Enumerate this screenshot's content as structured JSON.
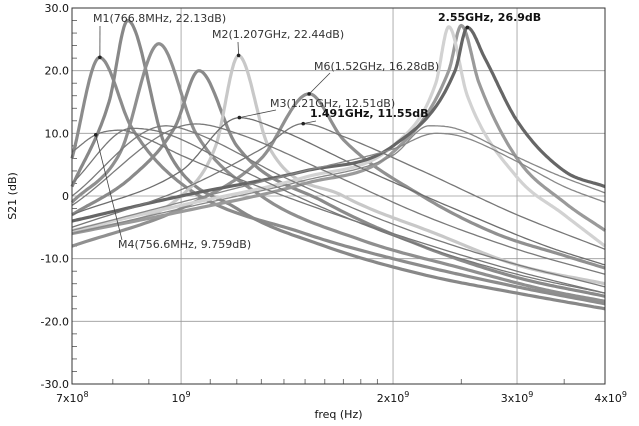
{
  "chart_data": {
    "type": "line",
    "xlabel": "freq (Hz)",
    "ylabel": "S21 (dB)",
    "x_scale": "log",
    "xlim": [
      700000000,
      4000000000
    ],
    "ylim": [
      -30,
      30
    ],
    "grid": true,
    "y_ticks": [
      "-30.0",
      "-20.0",
      "-10.0",
      "0",
      "10.0",
      "20.0",
      "30.0"
    ],
    "x_tick_labels": [
      {
        "base": "7x10",
        "exp": "8"
      },
      {
        "base": "10",
        "exp": "9"
      },
      {
        "base": "2x10",
        "exp": "9"
      },
      {
        "base": "3x10",
        "exp": "9"
      },
      {
        "base": "4x10",
        "exp": "9"
      }
    ],
    "series": [
      {
        "color": "#8c8c8c",
        "width": 3.2,
        "points": [
          [
            0.7,
            6
          ],
          [
            0.766,
            22.1
          ],
          [
            0.85,
            11
          ],
          [
            1.0,
            2
          ],
          [
            1.5,
            -6
          ],
          [
            2.0,
            -10
          ],
          [
            3.0,
            -14.5
          ],
          [
            4.0,
            -17.2
          ]
        ]
      },
      {
        "color": "#888888",
        "width": 3.2,
        "points": [
          [
            0.7,
            1.5
          ],
          [
            0.79,
            15
          ],
          [
            0.84,
            28
          ],
          [
            0.95,
            8
          ],
          [
            1.2,
            -2
          ],
          [
            1.6,
            -8
          ],
          [
            2.2,
            -12.5
          ],
          [
            3.0,
            -15.5
          ],
          [
            4.0,
            -18
          ]
        ]
      },
      {
        "color": "#8f8f8f",
        "width": 3.2,
        "points": [
          [
            0.7,
            -1
          ],
          [
            0.82,
            7
          ],
          [
            0.93,
            24.3
          ],
          [
            1.05,
            10
          ],
          [
            1.3,
            0
          ],
          [
            1.8,
            -7
          ],
          [
            2.5,
            -11.5
          ],
          [
            3.3,
            -15
          ],
          [
            4.0,
            -16.8
          ]
        ]
      },
      {
        "color": "#8a8a8a",
        "width": 3.2,
        "points": [
          [
            0.7,
            -3
          ],
          [
            0.85,
            3
          ],
          [
            0.98,
            11
          ],
          [
            1.06,
            20
          ],
          [
            1.2,
            8
          ],
          [
            1.6,
            -1
          ],
          [
            2.2,
            -8
          ],
          [
            3.0,
            -13
          ],
          [
            4.0,
            -16
          ]
        ]
      },
      {
        "color": "#c8c8c8",
        "width": 3.2,
        "points": [
          [
            0.7,
            -6
          ],
          [
            1.0,
            0
          ],
          [
            1.12,
            8
          ],
          [
            1.207,
            22.4
          ],
          [
            1.33,
            8
          ],
          [
            1.7,
            0
          ],
          [
            2.3,
            -6
          ],
          [
            3.0,
            -11
          ],
          [
            4.0,
            -14
          ]
        ]
      },
      {
        "color": "#909090",
        "width": 3.2,
        "points": [
          [
            0.7,
            -8
          ],
          [
            1.0,
            -2
          ],
          [
            1.3,
            6
          ],
          [
            1.52,
            16.3
          ],
          [
            1.7,
            9
          ],
          [
            2.2,
            0
          ],
          [
            2.8,
            -6
          ],
          [
            3.5,
            -9.5
          ],
          [
            4.0,
            -11.5
          ]
        ]
      },
      {
        "color": "#9a9a9a",
        "width": 3.2,
        "points": [
          [
            0.7,
            -6
          ],
          [
            1.0,
            -2.5
          ],
          [
            1.5,
            2
          ],
          [
            2.0,
            7
          ],
          [
            2.4,
            20
          ],
          [
            2.5,
            27.2
          ],
          [
            2.65,
            18
          ],
          [
            3.0,
            6
          ],
          [
            3.5,
            -1
          ],
          [
            4.0,
            -5.5
          ]
        ]
      },
      {
        "color": "#d2d2d2",
        "width": 3.2,
        "points": [
          [
            0.7,
            -5.5
          ],
          [
            1.0,
            -1.5
          ],
          [
            1.5,
            3
          ],
          [
            2.0,
            8
          ],
          [
            2.3,
            18
          ],
          [
            2.4,
            27.0
          ],
          [
            2.55,
            16
          ],
          [
            3.0,
            3
          ],
          [
            3.5,
            -3
          ],
          [
            4.0,
            -8
          ]
        ]
      },
      {
        "color": "#666666",
        "width": 3.2,
        "points": [
          [
            0.7,
            -4
          ],
          [
            1.0,
            0
          ],
          [
            1.5,
            4
          ],
          [
            2.0,
            8
          ],
          [
            2.45,
            20
          ],
          [
            2.55,
            26.9
          ],
          [
            2.7,
            22
          ],
          [
            3.0,
            12
          ],
          [
            3.5,
            4
          ],
          [
            4.0,
            1.5
          ]
        ]
      },
      {
        "color": "#777777",
        "width": 1.3,
        "points": [
          [
            0.7,
            7
          ],
          [
            0.756,
            9.76
          ],
          [
            0.82,
            10.5
          ],
          [
            0.9,
            9
          ],
          [
            1.0,
            6.5
          ],
          [
            1.4,
            0
          ],
          [
            2.0,
            -6
          ],
          [
            3.0,
            -12
          ],
          [
            4.0,
            -15.5
          ]
        ]
      },
      {
        "color": "#777777",
        "width": 1.3,
        "points": [
          [
            0.7,
            2
          ],
          [
            0.85,
            10.8
          ],
          [
            0.95,
            10
          ],
          [
            1.2,
            4.5
          ],
          [
            1.6,
            -2
          ],
          [
            2.2,
            -8
          ],
          [
            3.0,
            -12.5
          ],
          [
            4.0,
            -15.5
          ]
        ]
      },
      {
        "color": "#7a7a7a",
        "width": 1.3,
        "points": [
          [
            0.7,
            0
          ],
          [
            0.95,
            11.2
          ],
          [
            1.05,
            10
          ],
          [
            1.4,
            3
          ],
          [
            2.0,
            -4.5
          ],
          [
            2.8,
            -10
          ],
          [
            4.0,
            -14.5
          ]
        ]
      },
      {
        "color": "#7a7a7a",
        "width": 1.3,
        "points": [
          [
            0.7,
            -1.5
          ],
          [
            1.05,
            11.5
          ],
          [
            1.2,
            10
          ],
          [
            1.6,
            4
          ],
          [
            2.2,
            -3
          ],
          [
            3.0,
            -8.5
          ],
          [
            4.0,
            -12.5
          ]
        ]
      },
      {
        "color": "#6e6e6e",
        "width": 1.3,
        "points": [
          [
            0.7,
            -3
          ],
          [
            1.0,
            4
          ],
          [
            1.21,
            12.5
          ],
          [
            1.35,
            11
          ],
          [
            1.8,
            4.5
          ],
          [
            2.5,
            -2.5
          ],
          [
            3.3,
            -8
          ],
          [
            4.0,
            -11
          ]
        ]
      },
      {
        "color": "#777777",
        "width": 1.3,
        "points": [
          [
            0.7,
            -5
          ],
          [
            1.0,
            1
          ],
          [
            1.3,
            7.5
          ],
          [
            1.491,
            11.55
          ],
          [
            1.7,
            9.5
          ],
          [
            2.2,
            4
          ],
          [
            3.0,
            -3
          ],
          [
            4.0,
            -8.5
          ]
        ]
      },
      {
        "color": "#888888",
        "width": 1.3,
        "points": [
          [
            0.7,
            -5.5
          ],
          [
            1.0,
            -1
          ],
          [
            1.5,
            4
          ],
          [
            2.0,
            7.5
          ],
          [
            2.3,
            10
          ],
          [
            2.5,
            9.5
          ],
          [
            3.0,
            5.5
          ],
          [
            3.5,
            1.5
          ],
          [
            4.0,
            -1
          ]
        ]
      },
      {
        "color": "#888888",
        "width": 1.3,
        "points": [
          [
            0.7,
            -6
          ],
          [
            1.0,
            -2
          ],
          [
            1.5,
            2.5
          ],
          [
            2.0,
            6.5
          ],
          [
            2.25,
            11.2
          ],
          [
            2.45,
            10.8
          ],
          [
            2.9,
            7
          ],
          [
            3.4,
            3.5
          ],
          [
            4.0,
            0.5
          ]
        ]
      }
    ],
    "markers": [
      {
        "label": "M1(766.8MHz, 22.13dB)",
        "x": 766800000,
        "y": 22.13,
        "bold": false
      },
      {
        "label": "M2(1.207GHz, 22.44dB)",
        "x": 1207000000,
        "y": 22.44,
        "bold": false
      },
      {
        "label": "M6(1.52GHz, 16.28dB)",
        "x": 1520000000,
        "y": 16.28,
        "bold": false
      },
      {
        "label": "M3(1.21GHz, 12.51dB)",
        "x": 1210000000,
        "y": 12.51,
        "bold": false
      },
      {
        "label": "1.491GHz, 11.55dB",
        "x": 1491000000,
        "y": 11.55,
        "bold": true
      },
      {
        "label": "2.55GHz, 26.9dB",
        "x": 2550000000,
        "y": 26.9,
        "bold": true
      },
      {
        "label": "M4(756.6MHz, 9.759dB)",
        "x": 756600000,
        "y": 9.759,
        "bold": false
      }
    ]
  }
}
